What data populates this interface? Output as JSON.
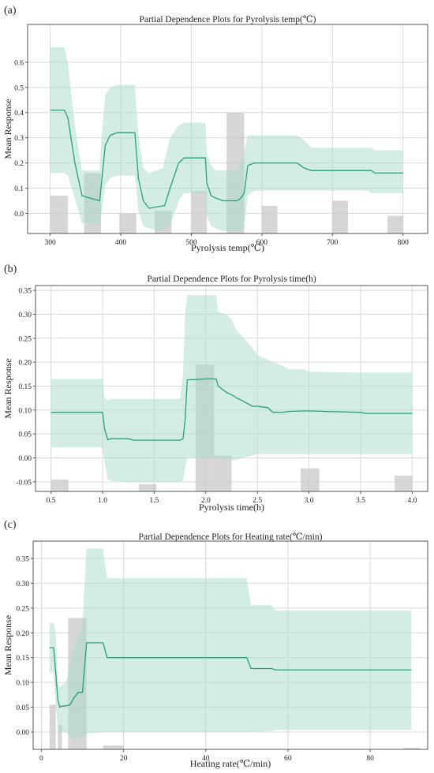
{
  "colors": {
    "band": "#a8dcc6",
    "line": "#2a9d76",
    "bar": "#c8c8c8",
    "grid": "#d9d9d9",
    "frame": "#555555"
  },
  "chart_data": [
    {
      "panel_label": "(a)",
      "type": "line",
      "title": "Partial Dependence Plots for Pyrolysis temp(℃)",
      "xlabel": "Pyrolysis temp(℃)",
      "ylabel": "Mean Response",
      "xlim": [
        268,
        835
      ],
      "ylim": [
        -0.08,
        0.75
      ],
      "xticks": [
        300,
        400,
        500,
        600,
        700,
        800
      ],
      "yticks": [
        0.0,
        0.1,
        0.2,
        0.3,
        0.4,
        0.5,
        0.6
      ],
      "grid": true,
      "series": [
        {
          "x": [
            300,
            320,
            325,
            335,
            345,
            370,
            372,
            378,
            385,
            395,
            420,
            425,
            432,
            440,
            460,
            462,
            470,
            482,
            490,
            500,
            520,
            522,
            528,
            535,
            545,
            565,
            570,
            575,
            580,
            590,
            650,
            655,
            660,
            670,
            750,
            755,
            760,
            770,
            800
          ],
          "mean": [
            0.41,
            0.41,
            0.38,
            0.2,
            0.07,
            0.05,
            0.1,
            0.27,
            0.31,
            0.32,
            0.32,
            0.14,
            0.05,
            0.02,
            0.03,
            0.03,
            0.1,
            0.2,
            0.22,
            0.22,
            0.22,
            0.12,
            0.07,
            0.06,
            0.05,
            0.05,
            0.06,
            0.08,
            0.19,
            0.2,
            0.2,
            0.19,
            0.18,
            0.17,
            0.17,
            0.17,
            0.16,
            0.16,
            0.16
          ],
          "upper": [
            0.66,
            0.66,
            0.6,
            0.35,
            0.17,
            0.17,
            0.28,
            0.47,
            0.5,
            0.51,
            0.51,
            0.31,
            0.18,
            0.16,
            0.18,
            0.21,
            0.3,
            0.35,
            0.36,
            0.36,
            0.36,
            0.24,
            0.19,
            0.17,
            0.17,
            0.17,
            0.2,
            0.25,
            0.31,
            0.31,
            0.31,
            0.3,
            0.29,
            0.26,
            0.26,
            0.26,
            0.25,
            0.25,
            0.25
          ],
          "lower": [
            0.16,
            0.16,
            0.15,
            0.06,
            -0.04,
            -0.04,
            -0.02,
            0.11,
            0.14,
            0.15,
            0.15,
            0.01,
            -0.05,
            -0.06,
            -0.07,
            -0.06,
            -0.05,
            0.05,
            0.08,
            0.08,
            0.08,
            -0.01,
            -0.05,
            -0.06,
            -0.07,
            -0.07,
            -0.07,
            -0.05,
            0.07,
            0.09,
            0.09,
            0.09,
            0.09,
            0.09,
            0.09,
            0.08,
            0.08,
            0.08,
            0.08
          ]
        }
      ],
      "histogram": [
        {
          "x0": 300,
          "x1": 325,
          "height": 0.15
        },
        {
          "x0": 348,
          "x1": 372,
          "height": 0.24
        },
        {
          "x0": 398,
          "x1": 422,
          "height": 0.08
        },
        {
          "x0": 448,
          "x1": 472,
          "height": 0.09
        },
        {
          "x0": 500,
          "x1": 522,
          "height": 0.17
        },
        {
          "x0": 550,
          "x1": 575,
          "height": 0.48
        },
        {
          "x0": 600,
          "x1": 622,
          "height": 0.11
        },
        {
          "x0": 700,
          "x1": 722,
          "height": 0.13
        },
        {
          "x0": 778,
          "x1": 800,
          "height": 0.07
        }
      ]
    },
    {
      "panel_label": "(b)",
      "type": "line",
      "title": "Partial Dependence Plots for Pyrolysis time(h)",
      "xlabel": "Pyrolysis time(h)",
      "ylabel": "Mean Response",
      "xlim": [
        0.35,
        4.15
      ],
      "ylim": [
        -0.07,
        0.36
      ],
      "xticks": [
        0.5,
        1.0,
        1.5,
        2.0,
        2.5,
        3.0,
        3.5,
        4.0
      ],
      "yticks": [
        -0.05,
        0.0,
        0.05,
        0.1,
        0.15,
        0.2,
        0.25,
        0.3,
        0.35
      ],
      "grid": true,
      "series": [
        {
          "x": [
            0.5,
            1.0,
            1.02,
            1.05,
            1.08,
            1.25,
            1.3,
            1.75,
            1.78,
            1.8,
            1.82,
            2.0,
            2.1,
            2.12,
            2.2,
            2.25,
            2.3,
            2.35,
            2.45,
            2.5,
            2.6,
            2.65,
            2.75,
            2.8,
            2.95,
            3.0,
            3.5,
            3.55,
            3.6,
            4.0
          ],
          "mean": [
            0.095,
            0.095,
            0.06,
            0.038,
            0.04,
            0.04,
            0.037,
            0.037,
            0.04,
            0.08,
            0.163,
            0.165,
            0.165,
            0.15,
            0.137,
            0.132,
            0.125,
            0.12,
            0.108,
            0.108,
            0.105,
            0.095,
            0.095,
            0.097,
            0.098,
            0.098,
            0.095,
            0.093,
            0.093,
            0.093
          ],
          "upper": [
            0.165,
            0.165,
            0.125,
            0.12,
            0.123,
            0.123,
            0.123,
            0.123,
            0.175,
            0.3,
            0.34,
            0.34,
            0.34,
            0.305,
            0.3,
            0.29,
            0.265,
            0.255,
            0.23,
            0.215,
            0.205,
            0.2,
            0.192,
            0.185,
            0.185,
            0.18,
            0.178,
            0.178,
            0.178,
            0.178
          ],
          "lower": [
            0.022,
            0.022,
            -0.01,
            -0.045,
            -0.048,
            -0.05,
            -0.05,
            -0.05,
            -0.048,
            -0.02,
            0.0,
            0.0,
            0.003,
            0.0,
            -0.002,
            -0.005,
            -0.005,
            0.0,
            0.005,
            0.008,
            0.008,
            0.008,
            0.008,
            0.008,
            0.008,
            0.008,
            0.008,
            0.008,
            0.008,
            0.008
          ]
        }
      ],
      "histogram": [
        {
          "x0": 0.5,
          "x1": 0.67,
          "height": 0.025
        },
        {
          "x0": 1.35,
          "x1": 1.52,
          "height": 0.015
        },
        {
          "x0": 1.9,
          "x1": 2.08,
          "height": 0.265
        },
        {
          "x0": 2.08,
          "x1": 2.25,
          "height": 0.075
        },
        {
          "x0": 2.92,
          "x1": 3.1,
          "height": 0.048
        },
        {
          "x0": 3.83,
          "x1": 4.0,
          "height": 0.033
        }
      ]
    },
    {
      "panel_label": "(c)",
      "type": "line",
      "title": "Partial Dependence Plots for Heating rate(℃/min)",
      "xlabel": "Heating rate(℃/min)",
      "ylabel": "Mean Response",
      "xlim": [
        -2,
        94
      ],
      "ylim": [
        -0.035,
        0.385
      ],
      "xticks": [
        0,
        20,
        40,
        60,
        80
      ],
      "yticks": [
        0.0,
        0.05,
        0.1,
        0.15,
        0.2,
        0.25,
        0.3,
        0.35
      ],
      "grid": true,
      "series": [
        {
          "x": [
            2,
            3,
            3.5,
            4,
            4.5,
            5,
            6,
            7,
            8,
            9,
            10,
            10.5,
            11,
            15,
            16,
            50,
            51,
            56,
            57,
            90
          ],
          "mean": [
            0.17,
            0.17,
            0.12,
            0.065,
            0.05,
            0.052,
            0.053,
            0.055,
            0.07,
            0.08,
            0.08,
            0.13,
            0.18,
            0.18,
            0.15,
            0.15,
            0.128,
            0.128,
            0.125,
            0.125
          ],
          "upper": [
            0.22,
            0.22,
            0.2,
            0.1,
            0.09,
            0.095,
            0.1,
            0.14,
            0.17,
            0.19,
            0.21,
            0.3,
            0.37,
            0.37,
            0.31,
            0.31,
            0.256,
            0.256,
            0.245,
            0.245
          ],
          "lower": [
            0.12,
            0.12,
            0.05,
            0.01,
            0.0,
            0.0,
            0.0,
            -0.01,
            -0.015,
            -0.012,
            -0.01,
            -0.005,
            -0.003,
            0.0,
            0.0,
            0.0,
            0.0,
            0.002,
            0.004,
            0.004
          ]
        }
      ],
      "histogram": [
        {
          "x0": 2,
          "x1": 3.5,
          "height": 0.09
        },
        {
          "x0": 4,
          "x1": 5,
          "height": 0.05
        },
        {
          "x0": 6.5,
          "x1": 11,
          "height": 0.265
        },
        {
          "x0": 15,
          "x1": 20,
          "height": 0.008
        },
        {
          "x0": 88,
          "x1": 92,
          "height": 0.003
        }
      ]
    }
  ]
}
